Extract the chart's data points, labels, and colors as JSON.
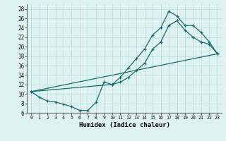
{
  "xlabel": "Humidex (Indice chaleur)",
  "bg_color": "#dff2f2",
  "grid_color": "#b8dede",
  "line_color": "#1a6b6b",
  "xlim": [
    -0.5,
    23.5
  ],
  "ylim": [
    6,
    29
  ],
  "xticks": [
    0,
    1,
    2,
    3,
    4,
    5,
    6,
    7,
    8,
    9,
    10,
    11,
    12,
    13,
    14,
    15,
    16,
    17,
    18,
    19,
    20,
    21,
    22,
    23
  ],
  "yticks": [
    6,
    8,
    10,
    12,
    14,
    16,
    18,
    20,
    22,
    24,
    26,
    28
  ],
  "line1_x": [
    0,
    1,
    2,
    3,
    4,
    5,
    6,
    7,
    8,
    9,
    10,
    11,
    12,
    13,
    14,
    15,
    16,
    17,
    18,
    19,
    20,
    21,
    22,
    23
  ],
  "line1_y": [
    10.5,
    9.3,
    8.5,
    8.3,
    7.8,
    7.3,
    6.5,
    6.5,
    8.2,
    12.5,
    12.0,
    12.5,
    13.5,
    15.0,
    16.5,
    19.5,
    21.0,
    24.5,
    25.5,
    23.5,
    22.0,
    21.0,
    20.5,
    18.5
  ],
  "line2_x": [
    0,
    10,
    11,
    12,
    13,
    14,
    15,
    16,
    17,
    18,
    19,
    20,
    21,
    22,
    23
  ],
  "line2_y": [
    10.5,
    12.0,
    13.5,
    15.5,
    17.5,
    19.5,
    22.5,
    24.0,
    27.5,
    26.5,
    24.5,
    24.5,
    23.0,
    21.0,
    18.5
  ],
  "line3_x": [
    0,
    23
  ],
  "line3_y": [
    10.5,
    18.5
  ]
}
